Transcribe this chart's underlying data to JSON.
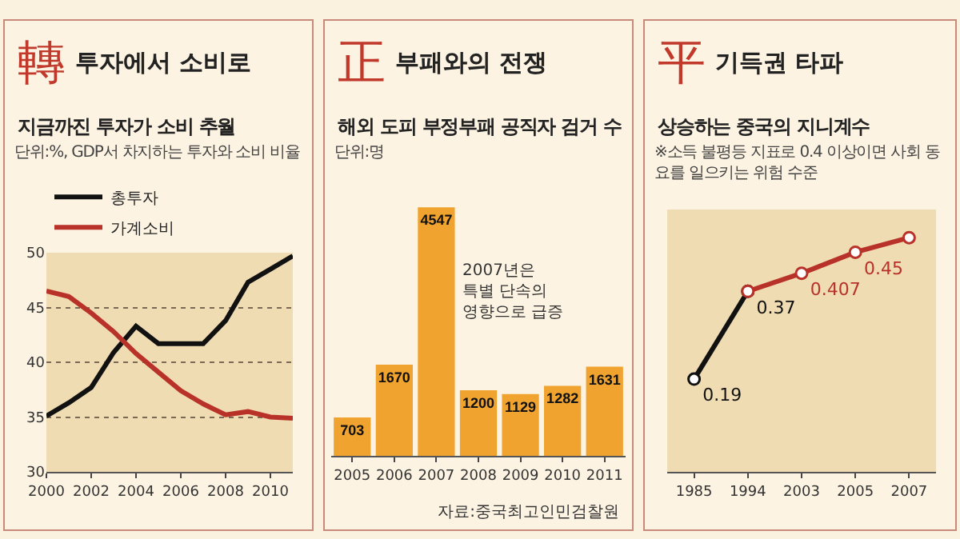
{
  "chart_data": [
    {
      "type": "line",
      "title": "투자에서 소비로",
      "subtitle": "지금까진 투자가 소비 추월",
      "annotations": [
        "轉",
        "단위:%, GDP서 차지하는 투자와 소비 비율"
      ],
      "x": [
        2000,
        2001,
        2002,
        2003,
        2004,
        2005,
        2006,
        2007,
        2008,
        2009,
        2010,
        2011
      ],
      "series": [
        {
          "name": "총투자",
          "color": "#111111",
          "values": [
            35.1,
            36.3,
            37.7,
            40.9,
            43.3,
            41.7,
            41.7,
            41.7,
            43.8,
            47.3,
            48.5,
            49.7
          ]
        },
        {
          "name": "가계소비",
          "color": "#b8322a",
          "values": [
            46.5,
            46.0,
            44.5,
            42.8,
            40.8,
            39.1,
            37.4,
            36.2,
            35.2,
            35.5,
            35.0,
            34.9
          ]
        }
      ],
      "xlim": [
        2000,
        2011
      ],
      "xticks": [
        2000,
        2002,
        2004,
        2006,
        2008,
        2010
      ],
      "ylim": [
        30,
        50
      ],
      "yticks": [
        30,
        35,
        40,
        45,
        50
      ],
      "grid": "y",
      "legend": "top left"
    },
    {
      "type": "bar",
      "title": "부패와의 전쟁",
      "subtitle": "해외 도피 부정부패 공직자 검거 수",
      "annotations": [
        "正",
        "단위:명",
        "2007년은\n특별 단속의\n영향으로 급증",
        "자료:중국최고인민검찰원"
      ],
      "categories": [
        "2005",
        "2006",
        "2007",
        "2008",
        "2009",
        "2010",
        "2011"
      ],
      "values": [
        703,
        1670,
        4547,
        1200,
        1129,
        1282,
        1631
      ],
      "color": "#f0a32e",
      "data_labels": true,
      "tick_labels": "x"
    },
    {
      "type": "line",
      "title": "기득권 타파",
      "subtitle": "상승하는 중국의 지니계수",
      "annotations": [
        "平",
        "※소득 불평등 지표로 0.4 이상이면 사회 동요를 일으키는 위험 수준"
      ],
      "categories": [
        "1985",
        "1994",
        "2003",
        "2005",
        "2007"
      ],
      "series": [
        {
          "color": "#111111",
          "values": [
            0.19,
            0.37,
            null,
            null,
            null
          ],
          "value_labels": [
            "0.19",
            "0.37",
            null,
            null,
            null
          ]
        },
        {
          "color": "#b8322a",
          "values": [
            null,
            0.37,
            0.407,
            0.45,
            0.48
          ],
          "value_labels": [
            null,
            null,
            "0.407",
            "0.45",
            null
          ]
        }
      ],
      "marker": "circle",
      "tick_labels": "x"
    }
  ]
}
